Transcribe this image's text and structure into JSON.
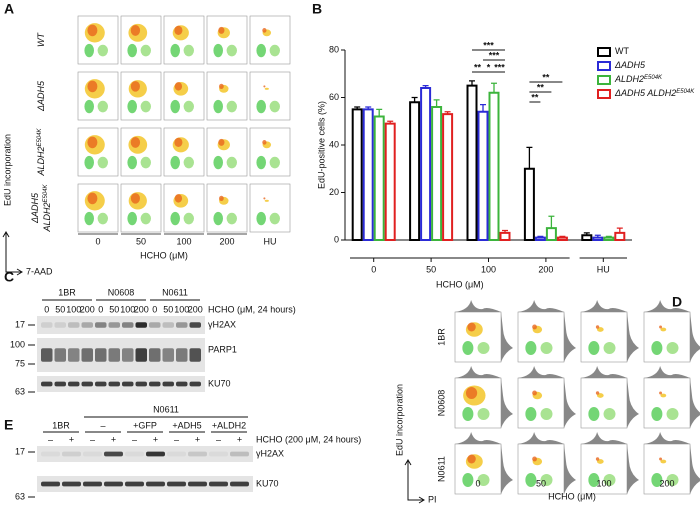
{
  "panel_a": {
    "letter": "A",
    "row_labels": [
      {
        "text": "WT"
      },
      {
        "text": "ΔADH5"
      },
      {
        "text": "ALDH2",
        "sup": "E504K"
      },
      {
        "text": "ΔADH5",
        "line2": "ALDH2",
        "sup": "E504K"
      }
    ],
    "columns": [
      "0",
      "50",
      "100",
      "200",
      "HU"
    ],
    "x_label": "HCHO (μM)",
    "y_axis": "EdU incorporation",
    "x_axis": "7-AAD"
  },
  "chart_data": {
    "type": "bar",
    "letter": "B",
    "ylabel": "EdU-positive cells (%)",
    "xlabel": "HCHO (μM)",
    "categories": [
      "0",
      "50",
      "100",
      "200",
      "HU"
    ],
    "series": [
      {
        "name": "WT",
        "color": "#000000",
        "values": [
          55,
          58,
          65,
          30,
          2
        ],
        "errors": [
          1,
          2,
          2,
          9,
          1
        ]
      },
      {
        "name": "ΔADH5",
        "color": "#2b2bd6",
        "values": [
          55,
          64,
          54,
          1,
          1
        ],
        "errors": [
          1,
          1,
          3,
          0.5,
          1
        ]
      },
      {
        "name": "ALDH2",
        "name_sup": "E504K",
        "color": "#3cb43c",
        "values": [
          52,
          56,
          62,
          5,
          1
        ],
        "errors": [
          3,
          3,
          4,
          5,
          0.5
        ]
      },
      {
        "name": "ΔADH5 ALDH2",
        "name_sup": "E504K",
        "color": "#e02020",
        "values": [
          49,
          53,
          3,
          1,
          3
        ],
        "errors": [
          1,
          1,
          1,
          0.5,
          2
        ]
      }
    ],
    "ylim": [
      0,
      80
    ],
    "yticks": [
      0,
      20,
      40,
      60,
      80
    ],
    "annotations": [
      "***",
      "***",
      "**",
      "*",
      "***",
      "**",
      "**",
      "**"
    ]
  },
  "panel_c": {
    "letter": "C",
    "groups": [
      "1BR",
      "N0608",
      "N0611"
    ],
    "lanes": [
      "0",
      "50",
      "100",
      "200",
      "0",
      "50",
      "100",
      "200",
      "0",
      "50",
      "100",
      "200"
    ],
    "treatment": "HCHO (μM, 24 hours)",
    "blots": [
      "γH2AX",
      "PARP1",
      "KU70"
    ],
    "markers": [
      "17",
      "100",
      "75",
      "63"
    ]
  },
  "panel_d": {
    "letter": "D",
    "row_labels": [
      "1BR",
      "N0608",
      "N0611"
    ],
    "columns": [
      "0",
      "50",
      "100",
      "200"
    ],
    "x_label": "HCHO (μM)",
    "y_axis": "EdU incorporation",
    "x_axis": "PI"
  },
  "panel_e": {
    "letter": "E",
    "top_label": "N0611",
    "groups": [
      "1BR",
      "–",
      "+GFP",
      "+ADH5",
      "+ALDH2"
    ],
    "lanes": [
      "–",
      "+",
      "–",
      "+",
      "–",
      "+",
      "–",
      "+",
      "–",
      "+"
    ],
    "treatment": "HCHO (200 μM, 24 hours)",
    "blots": [
      "γH2AX",
      "KU70"
    ],
    "markers": [
      "17",
      "63"
    ]
  }
}
